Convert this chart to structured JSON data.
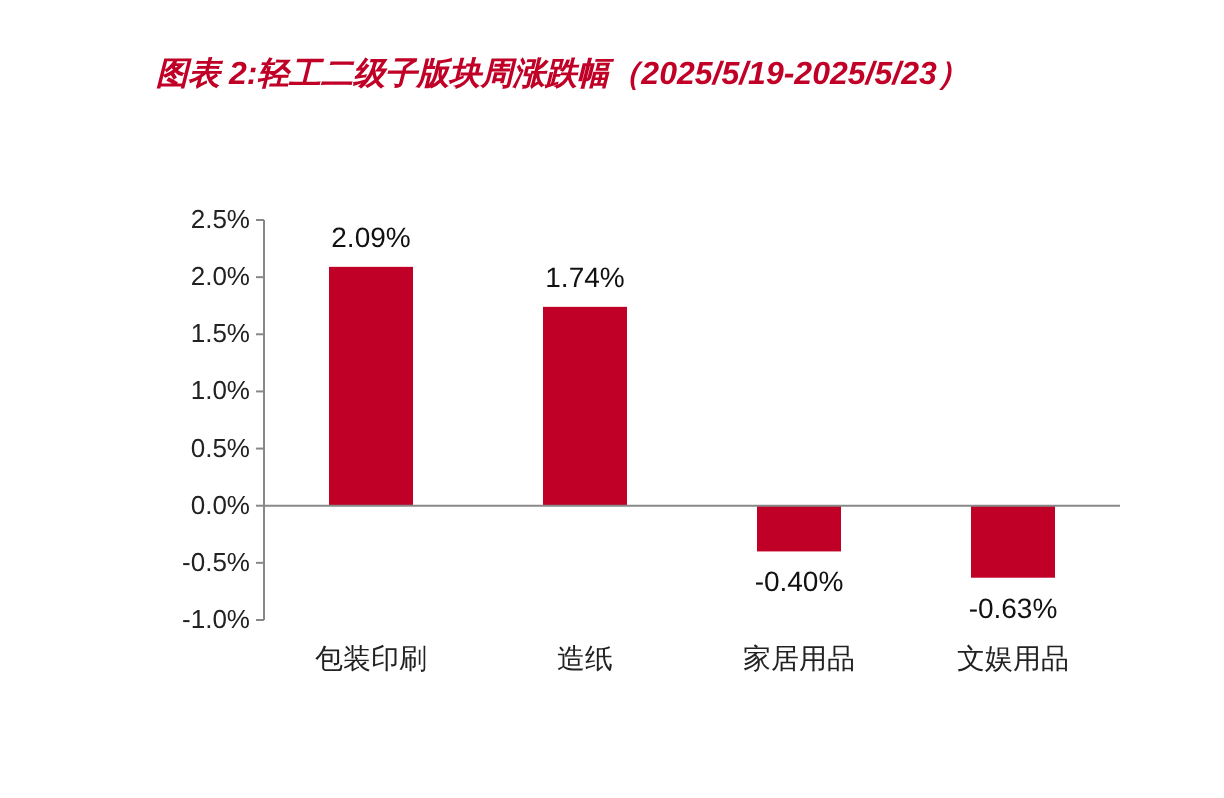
{
  "chart_data": {
    "type": "bar",
    "title": "图表 2:轻工二级子版块周涨跌幅（2025/5/19-2025/5/23）",
    "categories": [
      "包装印刷",
      "造纸",
      "家居用品",
      "文娱用品"
    ],
    "values": [
      2.09,
      1.74,
      -0.4,
      -0.63
    ],
    "value_labels": [
      "2.09%",
      "1.74%",
      "-0.40%",
      "-0.63%"
    ],
    "color": "#c00026",
    "ylim": [
      -1.0,
      2.5
    ],
    "yticks": [
      {
        "value": -1.0,
        "label": "-1.0%"
      },
      {
        "value": -0.5,
        "label": "-0.5%"
      },
      {
        "value": 0,
        "label": "0.0%"
      },
      {
        "value": 0.5,
        "label": "0.5%"
      },
      {
        "value": 1.0,
        "label": "1.0%"
      },
      {
        "value": 1.5,
        "label": "1.5%"
      },
      {
        "value": 2.0,
        "label": "2.0%"
      },
      {
        "value": 2.5,
        "label": "2.5%"
      }
    ]
  }
}
